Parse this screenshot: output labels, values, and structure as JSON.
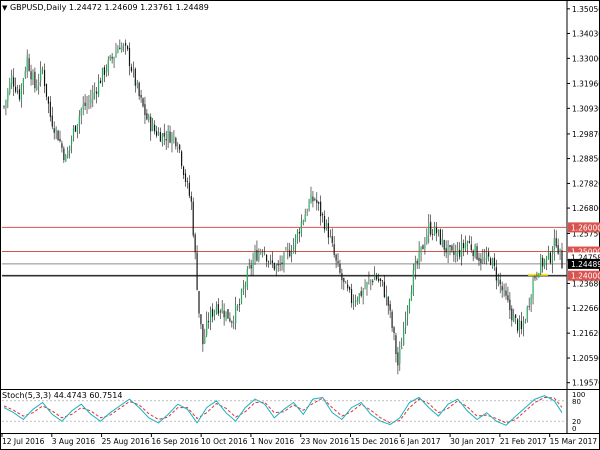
{
  "header": {
    "symbol": "GBPUSD,Daily",
    "values": "1.24472 1.24609 1.23761 1.24489",
    "marker_icon": "triangle-down-icon"
  },
  "colors": {
    "bull": "#26a65b",
    "bear": "#111111",
    "wick": "#111111",
    "level_line": "#d9534f",
    "level_badge": "#d9534f",
    "price_badge": "#000000",
    "support_line": "#333333",
    "gray_line": "#8c8c8c",
    "highlight": "#f5e82b",
    "stoch_main": "#17b3c2",
    "stoch_signal": "#e03131",
    "grid_level": "#9a9a9a"
  },
  "price_axis": {
    "ticks": [
      "1.35050",
      "1.34030",
      "1.33000",
      "1.31960",
      "1.30930",
      "1.29870",
      "1.28850",
      "1.27820",
      "1.26800",
      "1.25750",
      "1.24650",
      "1.23680",
      "1.22660",
      "1.21620",
      "1.20590",
      "1.19570"
    ],
    "badges": [
      {
        "label": "1.26000",
        "kind": "level"
      },
      {
        "label": "1.25000",
        "kind": "level"
      },
      {
        "label": "1.24758",
        "kind": "plain"
      },
      {
        "label": "1.24489",
        "kind": "price"
      },
      {
        "label": "1.24000",
        "kind": "level"
      }
    ]
  },
  "time_axis": {
    "labels": [
      "12 Jul 2016",
      "3 Aug 2016",
      "25 Aug 2016",
      "16 Sep 2016",
      "10 Oct 2016",
      "1 Nov 2016",
      "23 Nov 2016",
      "15 Dec 2016",
      "6 Jan 2017",
      "30 Jan 2017",
      "21 Feb 2017",
      "15 Mar 2017"
    ]
  },
  "stoch": {
    "title": "Stoch(5,3,3) 44.4743 60.7514",
    "ticks": [
      "100",
      "80",
      "20",
      "0"
    ]
  },
  "chart_data": {
    "type": "candlestick",
    "symbol": "GBPUSD",
    "timeframe": "Daily",
    "last_bar": {
      "open": 1.24472,
      "high": 1.24609,
      "low": 1.23761,
      "close": 1.24489
    },
    "ylim": [
      1.1935,
      1.3525
    ],
    "horizontal_levels": [
      1.26,
      1.25,
      1.24489,
      1.24
    ],
    "close_path": [
      [
        0,
        1.31
      ],
      [
        4,
        1.322
      ],
      [
        8,
        1.315
      ],
      [
        12,
        1.33
      ],
      [
        16,
        1.318
      ],
      [
        20,
        1.325
      ],
      [
        24,
        1.306
      ],
      [
        28,
        1.298
      ],
      [
        32,
        1.288
      ],
      [
        36,
        1.3
      ],
      [
        40,
        1.309
      ],
      [
        44,
        1.312
      ],
      [
        48,
        1.318
      ],
      [
        52,
        1.325
      ],
      [
        56,
        1.33
      ],
      [
        60,
        1.336
      ],
      [
        64,
        1.332
      ],
      [
        68,
        1.32
      ],
      [
        70,
        1.314
      ],
      [
        74,
        1.305
      ],
      [
        78,
        1.3
      ],
      [
        82,
        1.298
      ],
      [
        86,
        1.298
      ],
      [
        90,
        1.296
      ],
      [
        94,
        1.28
      ],
      [
        97,
        1.27
      ],
      [
        99,
        1.248
      ],
      [
        101,
        1.225
      ],
      [
        103,
        1.212
      ],
      [
        106,
        1.222
      ],
      [
        110,
        1.228
      ],
      [
        114,
        1.225
      ],
      [
        118,
        1.222
      ],
      [
        122,
        1.228
      ],
      [
        126,
        1.24
      ],
      [
        130,
        1.248
      ],
      [
        134,
        1.252
      ],
      [
        138,
        1.245
      ],
      [
        142,
        1.243
      ],
      [
        146,
        1.248
      ],
      [
        150,
        1.253
      ],
      [
        154,
        1.262
      ],
      [
        158,
        1.27
      ],
      [
        161,
        1.272
      ],
      [
        164,
        1.266
      ],
      [
        168,
        1.258
      ],
      [
        172,
        1.245
      ],
      [
        176,
        1.236
      ],
      [
        180,
        1.23
      ],
      [
        184,
        1.232
      ],
      [
        188,
        1.236
      ],
      [
        192,
        1.24
      ],
      [
        196,
        1.236
      ],
      [
        199,
        1.228
      ],
      [
        202,
        1.214
      ],
      [
        204,
        1.203
      ],
      [
        206,
        1.212
      ],
      [
        208,
        1.225
      ],
      [
        212,
        1.24
      ],
      [
        216,
        1.25
      ],
      [
        220,
        1.26
      ],
      [
        224,
        1.258
      ],
      [
        228,
        1.252
      ],
      [
        232,
        1.248
      ],
      [
        236,
        1.25
      ],
      [
        240,
        1.254
      ],
      [
        244,
        1.25
      ],
      [
        248,
        1.246
      ],
      [
        252,
        1.247
      ],
      [
        256,
        1.238
      ],
      [
        260,
        1.23
      ],
      [
        264,
        1.222
      ],
      [
        268,
        1.217
      ],
      [
        271,
        1.226
      ],
      [
        274,
        1.238
      ],
      [
        277,
        1.244
      ],
      [
        280,
        1.246
      ],
      [
        283,
        1.248
      ],
      [
        286,
        1.255
      ],
      [
        289,
        1.245
      ]
    ],
    "stoch_main": [
      [
        0,
        60
      ],
      [
        5,
        45
      ],
      [
        10,
        25
      ],
      [
        15,
        55
      ],
      [
        20,
        75
      ],
      [
        25,
        40
      ],
      [
        30,
        20
      ],
      [
        35,
        50
      ],
      [
        40,
        70
      ],
      [
        45,
        40
      ],
      [
        50,
        20
      ],
      [
        55,
        45
      ],
      [
        60,
        65
      ],
      [
        65,
        85
      ],
      [
        70,
        60
      ],
      [
        75,
        30
      ],
      [
        80,
        15
      ],
      [
        85,
        40
      ],
      [
        90,
        70
      ],
      [
        95,
        55
      ],
      [
        100,
        15
      ],
      [
        105,
        60
      ],
      [
        110,
        80
      ],
      [
        115,
        45
      ],
      [
        120,
        20
      ],
      [
        125,
        60
      ],
      [
        130,
        85
      ],
      [
        135,
        70
      ],
      [
        140,
        30
      ],
      [
        145,
        55
      ],
      [
        150,
        75
      ],
      [
        155,
        40
      ],
      [
        160,
        85
      ],
      [
        165,
        90
      ],
      [
        170,
        45
      ],
      [
        175,
        25
      ],
      [
        180,
        60
      ],
      [
        185,
        75
      ],
      [
        190,
        40
      ],
      [
        195,
        20
      ],
      [
        200,
        10
      ],
      [
        205,
        30
      ],
      [
        210,
        75
      ],
      [
        215,
        90
      ],
      [
        220,
        60
      ],
      [
        225,
        35
      ],
      [
        230,
        70
      ],
      [
        235,
        85
      ],
      [
        240,
        50
      ],
      [
        245,
        25
      ],
      [
        250,
        45
      ],
      [
        255,
        20
      ],
      [
        260,
        8
      ],
      [
        265,
        35
      ],
      [
        270,
        60
      ],
      [
        275,
        85
      ],
      [
        280,
        95
      ],
      [
        285,
        80
      ],
      [
        289,
        45
      ]
    ],
    "stoch_signal": [
      [
        0,
        65
      ],
      [
        5,
        52
      ],
      [
        10,
        35
      ],
      [
        15,
        45
      ],
      [
        20,
        65
      ],
      [
        25,
        50
      ],
      [
        30,
        30
      ],
      [
        35,
        40
      ],
      [
        40,
        60
      ],
      [
        45,
        50
      ],
      [
        50,
        30
      ],
      [
        55,
        38
      ],
      [
        60,
        58
      ],
      [
        65,
        78
      ],
      [
        70,
        68
      ],
      [
        75,
        42
      ],
      [
        80,
        25
      ],
      [
        85,
        32
      ],
      [
        90,
        60
      ],
      [
        95,
        60
      ],
      [
        100,
        28
      ],
      [
        105,
        45
      ],
      [
        110,
        72
      ],
      [
        115,
        58
      ],
      [
        120,
        32
      ],
      [
        125,
        48
      ],
      [
        130,
        75
      ],
      [
        135,
        76
      ],
      [
        140,
        45
      ],
      [
        145,
        48
      ],
      [
        150,
        68
      ],
      [
        155,
        52
      ],
      [
        160,
        72
      ],
      [
        165,
        88
      ],
      [
        170,
        60
      ],
      [
        175,
        35
      ],
      [
        180,
        48
      ],
      [
        185,
        70
      ],
      [
        190,
        52
      ],
      [
        195,
        30
      ],
      [
        200,
        15
      ],
      [
        205,
        22
      ],
      [
        210,
        60
      ],
      [
        215,
        85
      ],
      [
        220,
        72
      ],
      [
        225,
        45
      ],
      [
        230,
        58
      ],
      [
        235,
        80
      ],
      [
        240,
        62
      ],
      [
        245,
        35
      ],
      [
        250,
        38
      ],
      [
        255,
        28
      ],
      [
        260,
        15
      ],
      [
        265,
        25
      ],
      [
        270,
        50
      ],
      [
        275,
        75
      ],
      [
        280,
        90
      ],
      [
        285,
        88
      ],
      [
        289,
        61
      ]
    ]
  }
}
